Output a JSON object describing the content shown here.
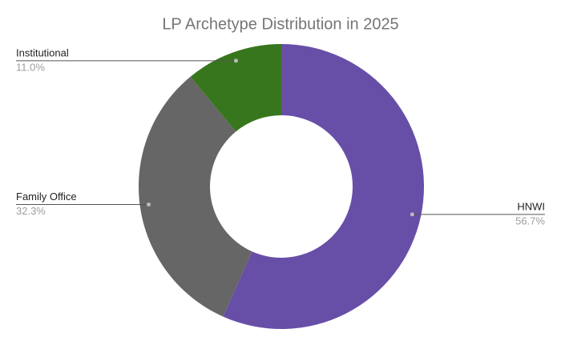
{
  "chart_data": {
    "type": "donut",
    "title": "LP Archetype Distribution in 2025",
    "categories": [
      "HNWI",
      "Family Office",
      "Institutional"
    ],
    "values": [
      56.7,
      32.3,
      11.0
    ],
    "value_labels": [
      "56.7%",
      "32.3%",
      "11.0%"
    ],
    "colors": [
      "#674ea7",
      "#666666",
      "#38761d"
    ]
  }
}
